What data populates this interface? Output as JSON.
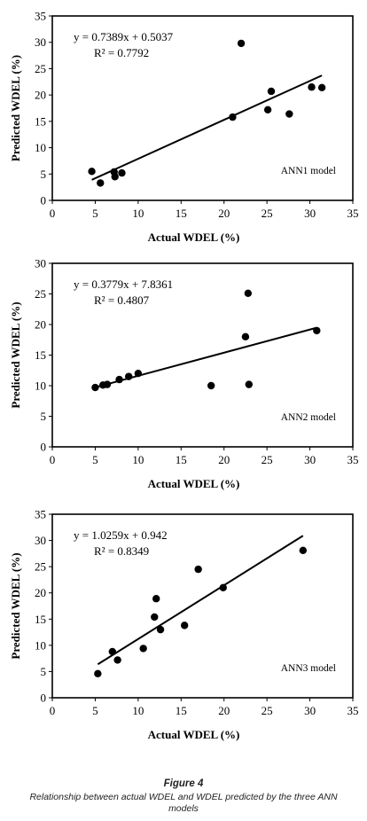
{
  "chart_data": [
    {
      "type": "scatter",
      "xlabel": "Actual WDEL (%)",
      "ylabel": "Predicted  WDEL  (%)",
      "xlim": [
        0,
        35
      ],
      "ylim": [
        0,
        35
      ],
      "xticks": [
        0,
        5,
        10,
        15,
        20,
        25,
        30,
        35
      ],
      "yticks": [
        0,
        5,
        10,
        15,
        20,
        25,
        30,
        35
      ],
      "equation": "y = 0.7389x + 0.5037",
      "r2": "R² = 0.7792",
      "model_label": "ANN1 model",
      "trendline": {
        "slope": 0.7389,
        "intercept": 0.5037,
        "x_range": [
          4.6,
          31.4
        ]
      },
      "points": [
        {
          "x": 4.6,
          "y": 5.5
        },
        {
          "x": 5.6,
          "y": 3.3
        },
        {
          "x": 7.2,
          "y": 5.4
        },
        {
          "x": 7.3,
          "y": 4.5
        },
        {
          "x": 8.1,
          "y": 5.2
        },
        {
          "x": 21.0,
          "y": 15.8
        },
        {
          "x": 22.0,
          "y": 29.8
        },
        {
          "x": 25.1,
          "y": 17.2
        },
        {
          "x": 25.5,
          "y": 20.7
        },
        {
          "x": 27.6,
          "y": 16.4
        },
        {
          "x": 30.2,
          "y": 21.5
        },
        {
          "x": 31.4,
          "y": 21.4
        }
      ]
    },
    {
      "type": "scatter",
      "xlabel": "Actual WDEL (%)",
      "ylabel": "Predicted  WDEL  (%)",
      "xlim": [
        0,
        35
      ],
      "ylim": [
        0,
        30
      ],
      "xticks": [
        0,
        5,
        10,
        15,
        20,
        25,
        30,
        35
      ],
      "yticks": [
        0,
        5,
        10,
        15,
        20,
        25,
        30
      ],
      "equation": "y = 0.3779x + 7.8361",
      "r2": "R² = 0.4807",
      "model_label": "ANN2 model",
      "trendline": {
        "slope": 0.3779,
        "intercept": 7.8361,
        "x_range": [
          5.0,
          30.8
        ]
      },
      "points": [
        {
          "x": 5.0,
          "y": 9.7
        },
        {
          "x": 5.9,
          "y": 10.1
        },
        {
          "x": 6.4,
          "y": 10.2
        },
        {
          "x": 7.8,
          "y": 11.0
        },
        {
          "x": 8.9,
          "y": 11.5
        },
        {
          "x": 10.0,
          "y": 12.0
        },
        {
          "x": 18.5,
          "y": 10.0
        },
        {
          "x": 22.5,
          "y": 18.0
        },
        {
          "x": 22.8,
          "y": 25.1
        },
        {
          "x": 22.9,
          "y": 10.2
        },
        {
          "x": 30.8,
          "y": 19.0
        }
      ]
    },
    {
      "type": "scatter",
      "xlabel": "Actual WDEL (%)",
      "ylabel": "Predicted  WDEL  (%)",
      "xlim": [
        0,
        35
      ],
      "ylim": [
        0,
        35
      ],
      "xticks": [
        0,
        5,
        10,
        15,
        20,
        25,
        30,
        35
      ],
      "yticks": [
        0,
        5,
        10,
        15,
        20,
        25,
        30,
        35
      ],
      "equation": "y = 1.0259x + 0.942",
      "r2": "R² = 0.8349",
      "model_label": "ANN3 model",
      "trendline": {
        "slope": 1.0259,
        "intercept": 0.942,
        "x_range": [
          5.3,
          29.2
        ]
      },
      "points": [
        {
          "x": 5.3,
          "y": 4.6
        },
        {
          "x": 7.0,
          "y": 8.8
        },
        {
          "x": 7.6,
          "y": 7.2
        },
        {
          "x": 10.6,
          "y": 9.4
        },
        {
          "x": 11.9,
          "y": 15.4
        },
        {
          "x": 12.1,
          "y": 18.9
        },
        {
          "x": 12.6,
          "y": 13.0
        },
        {
          "x": 15.4,
          "y": 13.8
        },
        {
          "x": 17.0,
          "y": 24.5
        },
        {
          "x": 19.9,
          "y": 21.0
        },
        {
          "x": 29.2,
          "y": 28.1
        }
      ]
    }
  ],
  "caption": {
    "label": "Figure 4",
    "text": "Relationship between actual WDEL and WDEL predicted by the three ANN models"
  }
}
